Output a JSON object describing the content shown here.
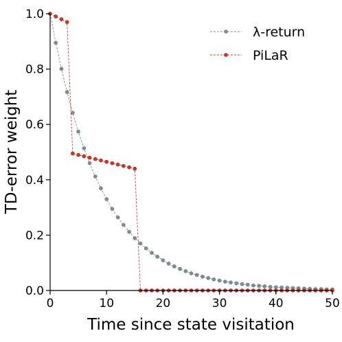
{
  "chart_data": {
    "type": "line",
    "xlabel": "Time since state visitation",
    "ylabel": "TD-error weight",
    "xlim": [
      0,
      50
    ],
    "ylim": [
      0,
      1.0
    ],
    "xticks": [
      "0",
      "10",
      "20",
      "30",
      "40",
      "50"
    ],
    "yticks": [
      "0.0",
      "0.2",
      "0.4",
      "0.6",
      "0.8",
      "1.0"
    ],
    "grid": false,
    "legend_position": "top-right",
    "series": [
      {
        "name": "λ-return",
        "color": "#7f8c8d",
        "style": "dashed",
        "x": [
          0,
          1,
          2,
          3,
          4,
          5,
          6,
          7,
          8,
          9,
          10,
          11,
          12,
          13,
          14,
          15,
          16,
          17,
          18,
          19,
          20,
          21,
          22,
          23,
          24,
          25,
          26,
          27,
          28,
          29,
          30,
          31,
          32,
          33,
          34,
          35,
          36,
          37,
          38,
          39,
          40,
          41,
          42,
          43,
          44,
          45,
          46,
          47,
          48,
          49,
          50
        ],
        "values": [
          1.0,
          0.895,
          0.801,
          0.717,
          0.642,
          0.574,
          0.514,
          0.46,
          0.412,
          0.369,
          0.33,
          0.295,
          0.264,
          0.237,
          0.212,
          0.189,
          0.17,
          0.152,
          0.136,
          0.122,
          0.109,
          0.097,
          0.087,
          0.078,
          0.07,
          0.062,
          0.056,
          0.05,
          0.045,
          0.04,
          0.036,
          0.032,
          0.029,
          0.026,
          0.023,
          0.021,
          0.018,
          0.017,
          0.015,
          0.013,
          0.012,
          0.011,
          0.01,
          0.009,
          0.008,
          0.007,
          0.006,
          0.005,
          0.005,
          0.004,
          0.004
        ]
      },
      {
        "name": "PiLaR",
        "color": "#c0392b",
        "style": "dashed",
        "x": [
          0,
          1,
          2,
          3,
          4,
          5,
          6,
          7,
          8,
          9,
          10,
          11,
          12,
          13,
          14,
          15,
          16,
          17,
          18,
          19,
          20,
          21,
          22,
          23,
          24,
          25,
          26,
          27,
          28,
          29,
          30,
          31,
          32,
          33,
          34,
          35,
          36,
          37,
          38,
          39,
          40,
          41,
          42,
          43,
          44,
          45,
          46,
          47,
          48,
          49,
          50
        ],
        "values": [
          1.0,
          0.99,
          0.98,
          0.97,
          0.495,
          0.49,
          0.485,
          0.48,
          0.475,
          0.47,
          0.465,
          0.46,
          0.455,
          0.45,
          0.445,
          0.44,
          0.0,
          0.0,
          0.0,
          0.0,
          0.0,
          0.0,
          0.0,
          0.0,
          0.0,
          0.0,
          0.0,
          0.0,
          0.0,
          0.0,
          0.0,
          0.0,
          0.0,
          0.0,
          0.0,
          0.0,
          0.0,
          0.0,
          0.0,
          0.0,
          0.0,
          0.0,
          0.0,
          0.0,
          0.0,
          0.0,
          0.0,
          0.0,
          0.0,
          0.0,
          0.0
        ]
      }
    ]
  }
}
